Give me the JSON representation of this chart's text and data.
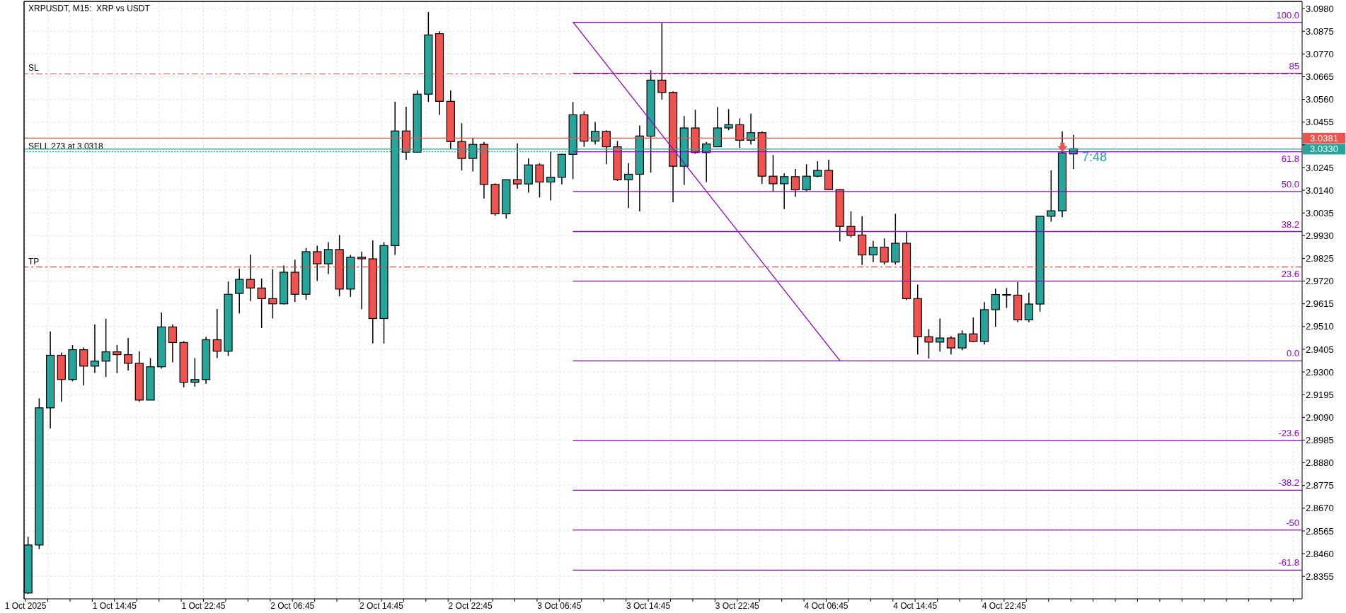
{
  "chart_data": {
    "type": "candlestick",
    "title": "XRPUSDT, M15:  XRP vs USDT",
    "annotations": [
      "7:48"
    ],
    "x": [
      "2025-10-01T07:00",
      "2025-10-01T08:00",
      "2025-10-01T09:00",
      "2025-10-01T10:00",
      "2025-10-01T11:00",
      "2025-10-01T12:00",
      "2025-10-01T13:00",
      "2025-10-01T14:00",
      "2025-10-01T15:00",
      "2025-10-01T16:00",
      "2025-10-01T17:00",
      "2025-10-01T18:00",
      "2025-10-01T19:00",
      "2025-10-01T20:00",
      "2025-10-01T21:00",
      "2025-10-01T22:00",
      "2025-10-01T23:00",
      "2025-10-02T00:00",
      "2025-10-02T01:00",
      "2025-10-02T02:00",
      "2025-10-02T03:00",
      "2025-10-02T04:00",
      "2025-10-02T05:00",
      "2025-10-02T06:00",
      "2025-10-02T07:00",
      "2025-10-02T08:00",
      "2025-10-02T09:00",
      "2025-10-02T10:00",
      "2025-10-02T11:00",
      "2025-10-02T12:00",
      "2025-10-02T13:00",
      "2025-10-02T14:00",
      "2025-10-02T15:00",
      "2025-10-02T16:00",
      "2025-10-02T17:00",
      "2025-10-02T18:00",
      "2025-10-02T19:00",
      "2025-10-02T20:00",
      "2025-10-02T21:00",
      "2025-10-02T22:00",
      "2025-10-02T23:00",
      "2025-10-03T00:00",
      "2025-10-03T01:00",
      "2025-10-03T02:00",
      "2025-10-03T03:00",
      "2025-10-03T04:00",
      "2025-10-03T05:00",
      "2025-10-03T06:00",
      "2025-10-03T07:00",
      "2025-10-03T08:00",
      "2025-10-03T09:00",
      "2025-10-03T10:00",
      "2025-10-03T11:00",
      "2025-10-03T12:00",
      "2025-10-03T13:00",
      "2025-10-03T14:00",
      "2025-10-03T15:00",
      "2025-10-03T16:00",
      "2025-10-03T17:00",
      "2025-10-03T18:00",
      "2025-10-03T19:00",
      "2025-10-03T20:00",
      "2025-10-03T21:00",
      "2025-10-03T22:00",
      "2025-10-03T23:00",
      "2025-10-04T00:00",
      "2025-10-04T01:00",
      "2025-10-04T02:00",
      "2025-10-04T03:00",
      "2025-10-04T04:00",
      "2025-10-04T05:00",
      "2025-10-04T06:00",
      "2025-10-04T07:00",
      "2025-10-04T08:00",
      "2025-10-04T09:00",
      "2025-10-04T10:00",
      "2025-10-04T11:00",
      "2025-10-04T12:00",
      "2025-10-04T13:00",
      "2025-10-04T14:00",
      "2025-10-04T15:00",
      "2025-10-04T16:00",
      "2025-10-04T17:00",
      "2025-10-04T18:00",
      "2025-10-04T19:00",
      "2025-10-04T20:00",
      "2025-10-04T21:00",
      "2025-10-04T22:00",
      "2025-10-04T23:00",
      "2025-10-05T00:00",
      "2025-10-05T01:00",
      "2025-10-05T02:00",
      "2025-10-05T03:00",
      "2025-10-05T04:00",
      "2025-10-05T05:00"
    ],
    "ohlc": [
      [
        2.8278,
        2.8538,
        2.8273,
        2.85
      ],
      [
        2.85,
        2.9178,
        2.8481,
        2.9134
      ],
      [
        2.9134,
        2.9487,
        2.9039,
        2.9377
      ],
      [
        2.9377,
        2.9389,
        2.9162,
        2.9265
      ],
      [
        2.9265,
        2.9424,
        2.9257,
        2.9403
      ],
      [
        2.9403,
        2.9413,
        2.9238,
        2.9327
      ],
      [
        2.9327,
        2.9519,
        2.9295,
        2.935
      ],
      [
        2.935,
        2.9546,
        2.9277,
        2.9393
      ],
      [
        2.9393,
        2.9425,
        2.9294,
        2.938
      ],
      [
        2.938,
        2.9457,
        2.9307,
        2.934
      ],
      [
        2.934,
        2.9396,
        2.9162,
        2.917
      ],
      [
        2.917,
        2.9364,
        2.917,
        2.9324
      ],
      [
        2.9324,
        2.9575,
        2.9316,
        2.9508
      ],
      [
        2.9508,
        2.952,
        2.9344,
        2.9436
      ],
      [
        2.9436,
        2.9443,
        2.9229,
        2.9252
      ],
      [
        2.9252,
        2.9364,
        2.9232,
        2.9265
      ],
      [
        2.9265,
        2.9462,
        2.9245,
        2.9449
      ],
      [
        2.9449,
        2.9591,
        2.9364,
        2.9396
      ],
      [
        2.9396,
        2.9718,
        2.9374,
        2.9659
      ],
      [
        2.9663,
        2.9778,
        2.9571,
        2.9728
      ],
      [
        2.9728,
        2.9843,
        2.9628,
        2.9688
      ],
      [
        2.9688,
        2.9732,
        2.9503,
        2.9639
      ],
      [
        2.9639,
        2.9775,
        2.9547,
        2.9615
      ],
      [
        2.9615,
        2.9792,
        2.9612,
        2.9761
      ],
      [
        2.9761,
        2.9819,
        2.9623,
        2.9659
      ],
      [
        2.9659,
        2.9873,
        2.9634,
        2.9856
      ],
      [
        2.9856,
        2.9884,
        2.9721,
        2.98
      ],
      [
        2.98,
        2.99,
        2.9753,
        2.9866
      ],
      [
        2.9866,
        2.9933,
        2.965,
        2.9683
      ],
      [
        2.9683,
        2.9841,
        2.9647,
        2.983
      ],
      [
        2.983,
        2.9856,
        2.959,
        2.9823
      ],
      [
        2.9823,
        2.9908,
        2.9432,
        2.9547
      ],
      [
        2.9547,
        2.99,
        2.9432,
        2.9884
      ],
      [
        2.9884,
        3.055,
        2.9841,
        3.0414
      ],
      [
        3.0414,
        3.0526,
        3.0281,
        3.0316
      ],
      [
        3.0316,
        3.0602,
        3.0314,
        3.0584
      ],
      [
        3.0584,
        3.0964,
        3.0548,
        3.0858
      ],
      [
        3.0864,
        3.0875,
        3.0488,
        3.0551
      ],
      [
        3.0551,
        3.0602,
        3.033,
        3.0365
      ],
      [
        3.0365,
        3.045,
        3.0232,
        3.0287
      ],
      [
        3.0287,
        3.0383,
        3.0227,
        3.0352
      ],
      [
        3.0352,
        3.0363,
        3.0102,
        3.0167
      ],
      [
        3.0167,
        3.0172,
        3.0022,
        3.0031
      ],
      [
        3.0031,
        3.0189,
        3.0009,
        3.0189
      ],
      [
        3.0189,
        3.0357,
        3.0147,
        3.0169
      ],
      [
        3.0169,
        3.0287,
        3.0129,
        3.0257
      ],
      [
        3.0257,
        3.0265,
        3.0107,
        3.0178
      ],
      [
        3.0178,
        3.0319,
        3.0093,
        3.02
      ],
      [
        3.02,
        3.0309,
        3.0167,
        3.0306
      ],
      [
        3.0306,
        3.0548,
        3.0192,
        3.0489
      ],
      [
        3.0489,
        3.0505,
        3.0341,
        3.0367
      ],
      [
        3.0367,
        3.0456,
        3.0352,
        3.0412
      ],
      [
        3.0412,
        3.0417,
        3.026,
        3.0341
      ],
      [
        3.0341,
        3.0368,
        3.0183,
        3.0189
      ],
      [
        3.0189,
        3.0265,
        3.0058,
        3.0214
      ],
      [
        3.0214,
        3.0439,
        3.0042,
        3.0391
      ],
      [
        3.039,
        3.0695,
        3.0221,
        3.0649
      ],
      [
        3.0649,
        3.0913,
        3.0559,
        3.0592
      ],
      [
        3.0592,
        3.0597,
        3.0085,
        3.0251
      ],
      [
        3.0251,
        3.0483,
        3.0165,
        3.0428
      ],
      [
        3.0428,
        3.0512,
        3.0309,
        3.0314
      ],
      [
        3.0314,
        3.0363,
        3.0178,
        3.0354
      ],
      [
        3.0341,
        3.0524,
        3.0341,
        3.0428
      ],
      [
        3.0428,
        3.0515,
        3.0417,
        3.0443
      ],
      [
        3.0443,
        3.0472,
        3.0336,
        3.0371
      ],
      [
        3.0371,
        3.0494,
        3.0352,
        3.0406
      ],
      [
        3.0406,
        3.0412,
        3.0169,
        3.0205
      ],
      [
        3.0205,
        3.0303,
        3.0134,
        3.017
      ],
      [
        3.017,
        3.0218,
        3.0053,
        3.0203
      ],
      [
        3.0203,
        3.0238,
        3.011,
        3.0142
      ],
      [
        3.0142,
        3.026,
        3.0134,
        3.0205
      ],
      [
        3.0205,
        3.0274,
        3.02,
        3.0232
      ],
      [
        3.0232,
        3.0281,
        3.014,
        3.0143
      ],
      [
        3.0143,
        3.0145,
        2.9904,
        2.9973
      ],
      [
        2.9973,
        3.0042,
        2.9922,
        2.9931
      ],
      [
        2.9933,
        3.002,
        2.9795,
        2.9841
      ],
      [
        2.9841,
        2.9906,
        2.9808,
        2.9877
      ],
      [
        2.9877,
        2.9917,
        2.9797,
        2.9808
      ],
      [
        2.9808,
        3.0031,
        2.9797,
        2.9895
      ],
      [
        2.9895,
        2.995,
        2.9632,
        2.9639
      ],
      [
        2.9639,
        2.9704,
        2.9381,
        2.9463
      ],
      [
        2.9463,
        2.9498,
        2.9362,
        2.9438
      ],
      [
        2.9438,
        2.9547,
        2.9394,
        2.9457
      ],
      [
        2.9457,
        2.9465,
        2.9381,
        2.9411
      ],
      [
        2.9411,
        2.9492,
        2.94,
        2.9476
      ],
      [
        2.9476,
        2.9552,
        2.9438,
        2.9441
      ],
      [
        2.9441,
        2.9623,
        2.9427,
        2.9588
      ],
      [
        2.9588,
        2.9685,
        2.9509,
        2.9658
      ],
      [
        2.9658,
        2.9688,
        2.9596,
        2.9655
      ],
      [
        2.9655,
        2.9715,
        2.953,
        2.9541
      ],
      [
        2.9541,
        2.9666,
        2.953,
        2.9614
      ],
      [
        2.9614,
        3.002,
        2.9579,
        3.002
      ],
      [
        3.002,
        3.0232,
        2.9995,
        3.0045
      ],
      [
        3.0045,
        3.0412,
        3.0015,
        3.0313
      ],
      [
        3.0308,
        3.0396,
        3.0238,
        3.0332
      ]
    ],
    "colors": [
      "#26a69a",
      "#26a69a",
      "#26a69a",
      "#ef5350",
      "#26a69a",
      "#ef5350",
      "#26a69a",
      "#26a69a",
      "#ef5350",
      "#ef5350",
      "#ef5350",
      "#26a69a",
      "#26a69a",
      "#ef5350",
      "#ef5350",
      "#26a69a",
      "#26a69a",
      "#ef5350",
      "#26a69a",
      "#26a69a",
      "#ef5350",
      "#ef5350",
      "#ef5350",
      "#26a69a",
      "#ef5350",
      "#26a69a",
      "#ef5350",
      "#26a69a",
      "#ef5350",
      "#26a69a",
      "#ef5350",
      "#ef5350",
      "#26a69a",
      "#26a69a",
      "#ef5350",
      "#26a69a",
      "#26a69a",
      "#ef5350",
      "#ef5350",
      "#ef5350",
      "#26a69a",
      "#ef5350",
      "#ef5350",
      "#26a69a",
      "#ef5350",
      "#26a69a",
      "#ef5350",
      "#26a69a",
      "#26a69a",
      "#26a69a",
      "#ef5350",
      "#26a69a",
      "#ef5350",
      "#ef5350",
      "#26a69a",
      "#26a69a",
      "#26a69a",
      "#ef5350",
      "#ef5350",
      "#26a69a",
      "#ef5350",
      "#26a69a",
      "#26a69a",
      "#26a69a",
      "#ef5350",
      "#26a69a",
      "#ef5350",
      "#ef5350",
      "#26a69a",
      "#ef5350",
      "#26a69a",
      "#26a69a",
      "#ef5350",
      "#ef5350",
      "#ef5350",
      "#ef5350",
      "#26a69a",
      "#ef5350",
      "#26a69a",
      "#ef5350",
      "#ef5350",
      "#ef5350",
      "#26a69a",
      "#ef5350",
      "#26a69a",
      "#ef5350",
      "#26a69a",
      "#26a69a",
      "#ef5350",
      "#ef5350",
      "#26a69a",
      "#26a69a",
      "#26a69a",
      "#26a69a",
      "#26a69a"
    ],
    "series": [
      {
        "type": "line",
        "name": "100.0",
        "color": "#9400d3",
        "x": [
          "2025-10-03T08:00",
          "2025-10-06T01:33"
        ],
        "values": [
          3.0916,
          3.0916
        ]
      },
      {
        "type": "line",
        "name": "85",
        "color": "#9400d3",
        "x": [
          "2025-10-03T08:00",
          "2025-10-06T01:33"
        ],
        "values": [
          3.0681,
          3.0681
        ]
      },
      {
        "type": "line",
        "name": "61.8",
        "color": "#9400d3",
        "x": [
          "2025-10-03T08:00",
          "2025-10-06T01:33"
        ],
        "values": [
          3.0318,
          3.0318
        ]
      },
      {
        "type": "line",
        "name": "50.0",
        "color": "#9400d3",
        "x": [
          "2025-10-03T08:00",
          "2025-10-06T01:33"
        ],
        "values": [
          3.0134,
          3.0134
        ]
      },
      {
        "type": "line",
        "name": "38.2",
        "color": "#9400d3",
        "x": [
          "2025-10-03T08:00",
          "2025-10-06T01:33"
        ],
        "values": [
          2.9949,
          2.9949
        ]
      },
      {
        "type": "line",
        "name": "23.6",
        "color": "#9400d3",
        "x": [
          "2025-10-03T08:00",
          "2025-10-06T01:33"
        ],
        "values": [
          2.972,
          2.972
        ]
      },
      {
        "type": "line",
        "name": "0.0",
        "color": "#9400d3",
        "x": [
          "2025-10-03T08:00",
          "2025-10-06T01:33"
        ],
        "values": [
          2.9351,
          2.9351
        ]
      },
      {
        "type": "line",
        "name": "-23.6",
        "color": "#9400d3",
        "x": [
          "2025-10-03T08:00",
          "2025-10-06T01:33"
        ],
        "values": [
          2.8982,
          2.8982
        ]
      },
      {
        "type": "line",
        "name": "-38.2",
        "color": "#9400d3",
        "x": [
          "2025-10-03T08:00",
          "2025-10-06T01:33"
        ],
        "values": [
          2.8753,
          2.8753
        ]
      },
      {
        "type": "line",
        "name": "-50",
        "color": "#9400d3",
        "x": [
          "2025-10-03T08:00",
          "2025-10-06T01:33"
        ],
        "values": [
          2.8569,
          2.8569
        ]
      },
      {
        "type": "line",
        "name": "-61.8",
        "color": "#9400d3",
        "x": [
          "2025-10-03T08:00",
          "2025-10-06T01:33"
        ],
        "values": [
          2.8384,
          2.8384
        ]
      },
      {
        "type": "line",
        "color": "#9400d3",
        "x": [
          "2025-10-03T08:00",
          "2025-10-04T08:00"
        ],
        "values": [
          3.0916,
          2.9351
        ]
      }
    ],
    "ref_lines": [
      {
        "axis": "y",
        "value": 3.0678,
        "label": "SL",
        "color": "#f0433a",
        "line_style": "dashed"
      },
      {
        "axis": "y",
        "value": 2.9785,
        "label": "TP",
        "color": "#f0433a",
        "line_style": "dashed"
      },
      {
        "axis": "y",
        "value": 3.0318,
        "label": "SELL 273 at 3.0318",
        "color": "#26a69a",
        "line_style": "dotted"
      },
      {
        "axis": "y",
        "value": 3.0381,
        "label": "3.0381",
        "color": "#ef5350",
        "line_style": "solid"
      },
      {
        "axis": "y",
        "value": 3.033,
        "label": "3.0330",
        "color": "#26a69a",
        "line_style": "solid"
      }
    ],
    "xlim": [
      "2025-10-01T06:37",
      "2025-10-06T01:33"
    ],
    "ylim": [
      2.8251,
      3.1013
    ],
    "xticks": [
      {
        "value": "2025-10-01T06:45",
        "label": "1 Oct 2025"
      },
      {
        "value": "2025-10-01T08:45",
        "label": null
      },
      {
        "value": "2025-10-01T10:45",
        "label": null
      },
      {
        "value": "2025-10-01T12:45",
        "label": null
      },
      {
        "value": "2025-10-01T14:45",
        "label": "1 Oct 14:45"
      },
      {
        "value": "2025-10-01T16:45",
        "label": null
      },
      {
        "value": "2025-10-01T18:45",
        "label": null
      },
      {
        "value": "2025-10-01T20:45",
        "label": null
      },
      {
        "value": "2025-10-01T22:45",
        "label": "1 Oct 22:45"
      },
      {
        "value": "2025-10-02T00:45",
        "label": null
      },
      {
        "value": "2025-10-02T02:45",
        "label": null
      },
      {
        "value": "2025-10-02T04:45",
        "label": null
      },
      {
        "value": "2025-10-02T06:45",
        "label": "2 Oct 06:45"
      },
      {
        "value": "2025-10-02T08:45",
        "label": null
      },
      {
        "value": "2025-10-02T10:45",
        "label": null
      },
      {
        "value": "2025-10-02T12:45",
        "label": null
      },
      {
        "value": "2025-10-02T14:45",
        "label": "2 Oct 14:45"
      },
      {
        "value": "2025-10-02T16:45",
        "label": null
      },
      {
        "value": "2025-10-02T18:45",
        "label": null
      },
      {
        "value": "2025-10-02T20:45",
        "label": null
      },
      {
        "value": "2025-10-02T22:45",
        "label": "2 Oct 22:45"
      },
      {
        "value": "2025-10-03T00:45",
        "label": null
      },
      {
        "value": "2025-10-03T02:45",
        "label": null
      },
      {
        "value": "2025-10-03T04:45",
        "label": null
      },
      {
        "value": "2025-10-03T06:45",
        "label": "3 Oct 06:45"
      },
      {
        "value": "2025-10-03T08:45",
        "label": null
      },
      {
        "value": "2025-10-03T10:45",
        "label": null
      },
      {
        "value": "2025-10-03T12:45",
        "label": null
      },
      {
        "value": "2025-10-03T14:45",
        "label": "3 Oct 14:45"
      },
      {
        "value": "2025-10-03T16:45",
        "label": null
      },
      {
        "value": "2025-10-03T18:45",
        "label": null
      },
      {
        "value": "2025-10-03T20:45",
        "label": null
      },
      {
        "value": "2025-10-03T22:45",
        "label": "3 Oct 22:45"
      },
      {
        "value": "2025-10-04T00:45",
        "label": null
      },
      {
        "value": "2025-10-04T02:45",
        "label": null
      },
      {
        "value": "2025-10-04T04:45",
        "label": null
      },
      {
        "value": "2025-10-04T06:45",
        "label": "4 Oct 06:45"
      },
      {
        "value": "2025-10-04T08:45",
        "label": null
      },
      {
        "value": "2025-10-04T10:45",
        "label": null
      },
      {
        "value": "2025-10-04T12:45",
        "label": null
      },
      {
        "value": "2025-10-04T14:45",
        "label": "4 Oct 14:45"
      },
      {
        "value": "2025-10-04T16:45",
        "label": null
      },
      {
        "value": "2025-10-04T18:45",
        "label": null
      },
      {
        "value": "2025-10-04T20:45",
        "label": null
      },
      {
        "value": "2025-10-04T22:45",
        "label": "4 Oct 22:45"
      },
      {
        "value": "2025-10-05T00:45",
        "label": null
      },
      {
        "value": "2025-10-05T02:45",
        "label": null
      },
      {
        "value": "2025-10-05T04:45",
        "label": null
      },
      {
        "value": "2025-10-05T06:45",
        "label": null
      },
      {
        "value": "2025-10-05T08:45",
        "label": null
      },
      {
        "value": "2025-10-05T10:45",
        "label": null
      },
      {
        "value": "2025-10-05T12:45",
        "label": null
      },
      {
        "value": "2025-10-05T14:45",
        "label": null
      },
      {
        "value": "2025-10-05T16:45",
        "label": null
      },
      {
        "value": "2025-10-05T18:45",
        "label": null
      },
      {
        "value": "2025-10-05T20:45",
        "label": null
      },
      {
        "value": "2025-10-05T22:45",
        "label": null
      },
      {
        "value": "2025-10-06T00:45",
        "label": null
      }
    ],
    "yticks": [
      2.8355,
      {
        "value": 2.846,
        "label": "2.8460"
      },
      2.8565,
      {
        "value": 2.867,
        "label": "2.8670"
      },
      2.8775,
      {
        "value": 2.888,
        "label": "2.8880"
      },
      2.8985,
      {
        "value": 2.909,
        "label": "2.9090"
      },
      2.9195,
      {
        "value": 2.93,
        "label": "2.9300"
      },
      2.9405,
      {
        "value": 2.951,
        "label": "2.9510"
      },
      2.9615,
      {
        "value": 2.972,
        "label": "2.9720"
      },
      2.9825,
      {
        "value": 2.993,
        "label": "2.9930"
      },
      3.0035,
      {
        "value": 3.014,
        "label": "3.0140"
      },
      3.0245,
      {
        "value": 3.035,
        "label": null
      },
      3.0455,
      {
        "value": 3.056,
        "label": "3.0560"
      },
      3.0665,
      {
        "value": 3.077,
        "label": "3.0770"
      },
      3.0875,
      {
        "value": 3.098,
        "label": "3.0980"
      }
    ],
    "grid": true
  }
}
